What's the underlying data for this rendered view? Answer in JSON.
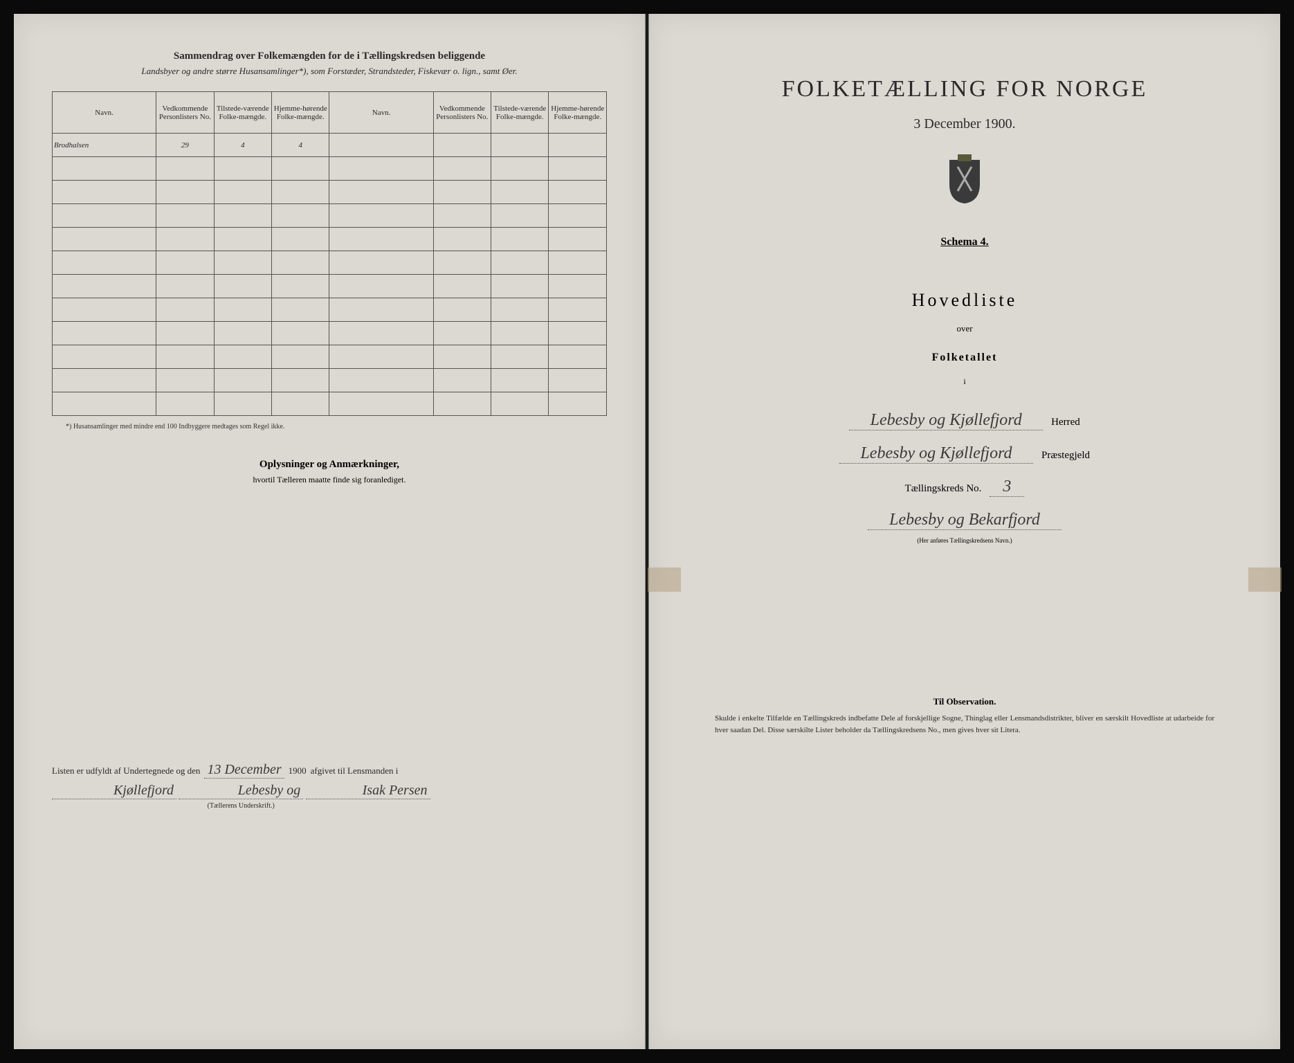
{
  "colors": {
    "page_bg": "#dcd8d2",
    "text": "#2a2a2a",
    "border": "#555555",
    "handwriting": "#3a3a3a",
    "tape": "rgba(180,160,130,0.55)",
    "frame_bg": "#0a0a0a"
  },
  "left": {
    "header_bold": "Sammendrag over Folkemængden for de i Tællingskredsen beliggende",
    "header_italic": "Landsbyer og andre større Husansamlinger*), som Forstæder, Strandsteder, Fiskevær o. lign., samt Øer.",
    "columns": [
      "Navn.",
      "Vedkommende Personlisters No.",
      "Tilstede-værende Folke-mængde.",
      "Hjemme-hørende Folke-mængde.",
      "Navn.",
      "Vedkommende Personlisters No.",
      "Tilstede-værende Folke-mængde.",
      "Hjemme-hørende Folke-mængde."
    ],
    "rows": [
      [
        "Brodhalsen",
        "29",
        "4",
        "4",
        "",
        "",
        "",
        ""
      ],
      [
        "",
        "",
        "",
        "",
        "",
        "",
        "",
        ""
      ],
      [
        "",
        "",
        "",
        "",
        "",
        "",
        "",
        ""
      ],
      [
        "",
        "",
        "",
        "",
        "",
        "",
        "",
        ""
      ],
      [
        "",
        "",
        "",
        "",
        "",
        "",
        "",
        ""
      ],
      [
        "",
        "",
        "",
        "",
        "",
        "",
        "",
        ""
      ],
      [
        "",
        "",
        "",
        "",
        "",
        "",
        "",
        ""
      ],
      [
        "",
        "",
        "",
        "",
        "",
        "",
        "",
        ""
      ],
      [
        "",
        "",
        "",
        "",
        "",
        "",
        "",
        ""
      ],
      [
        "",
        "",
        "",
        "",
        "",
        "",
        "",
        ""
      ],
      [
        "",
        "",
        "",
        "",
        "",
        "",
        "",
        ""
      ],
      [
        "",
        "",
        "",
        "",
        "",
        "",
        "",
        ""
      ]
    ],
    "footnote": "*) Husansamlinger med mindre end 100 Indbyggere medtages som Regel ikke.",
    "oplysninger_title": "Oplysninger og Anmærkninger,",
    "oplysninger_sub": "hvortil Tælleren maatte finde sig foranlediget.",
    "sig_prefix": "Listen er udfyldt af Undertegnede og den",
    "sig_date": "13 December",
    "sig_year": "1900",
    "sig_mid": "afgivet til Lensmanden i",
    "sig_place1": "Kjøllefjord",
    "sig_place2": "Lebesby og",
    "sig_name": "Isak Persen",
    "sig_caption": "(Tællerens Underskrift.)"
  },
  "right": {
    "title": "FOLKETÆLLING FOR NORGE",
    "date": "3 December 1900.",
    "schema": "Schema 4.",
    "hovedliste": "Hovedliste",
    "over": "over",
    "folketallet": "Folketallet",
    "small_i": "i",
    "herred_hw": "Lebesby og Kjøllefjord",
    "herred_label": "Herred",
    "praeste_hw": "Lebesby og Kjøllefjord",
    "praeste_label": "Præstegjeld",
    "kreds_label": "Tællingskreds No.",
    "kreds_no": "3",
    "kreds_name_hw": "Lebesby og Bekarfjord",
    "kreds_caption": "(Her anføres Tællingskredsens Navn.)",
    "obs_title": "Til Observation.",
    "obs_text": "Skulde i enkelte Tilfælde en Tællingskreds indbefatte Dele af forskjellige Sogne, Thinglag eller Lensmandsdistrikter, bliver en særskilt Hovedliste at udarbeide for hver saadan Del. Disse særskilte Lister beholder da Tællingskredsens No., men gives hver sit Litera."
  }
}
